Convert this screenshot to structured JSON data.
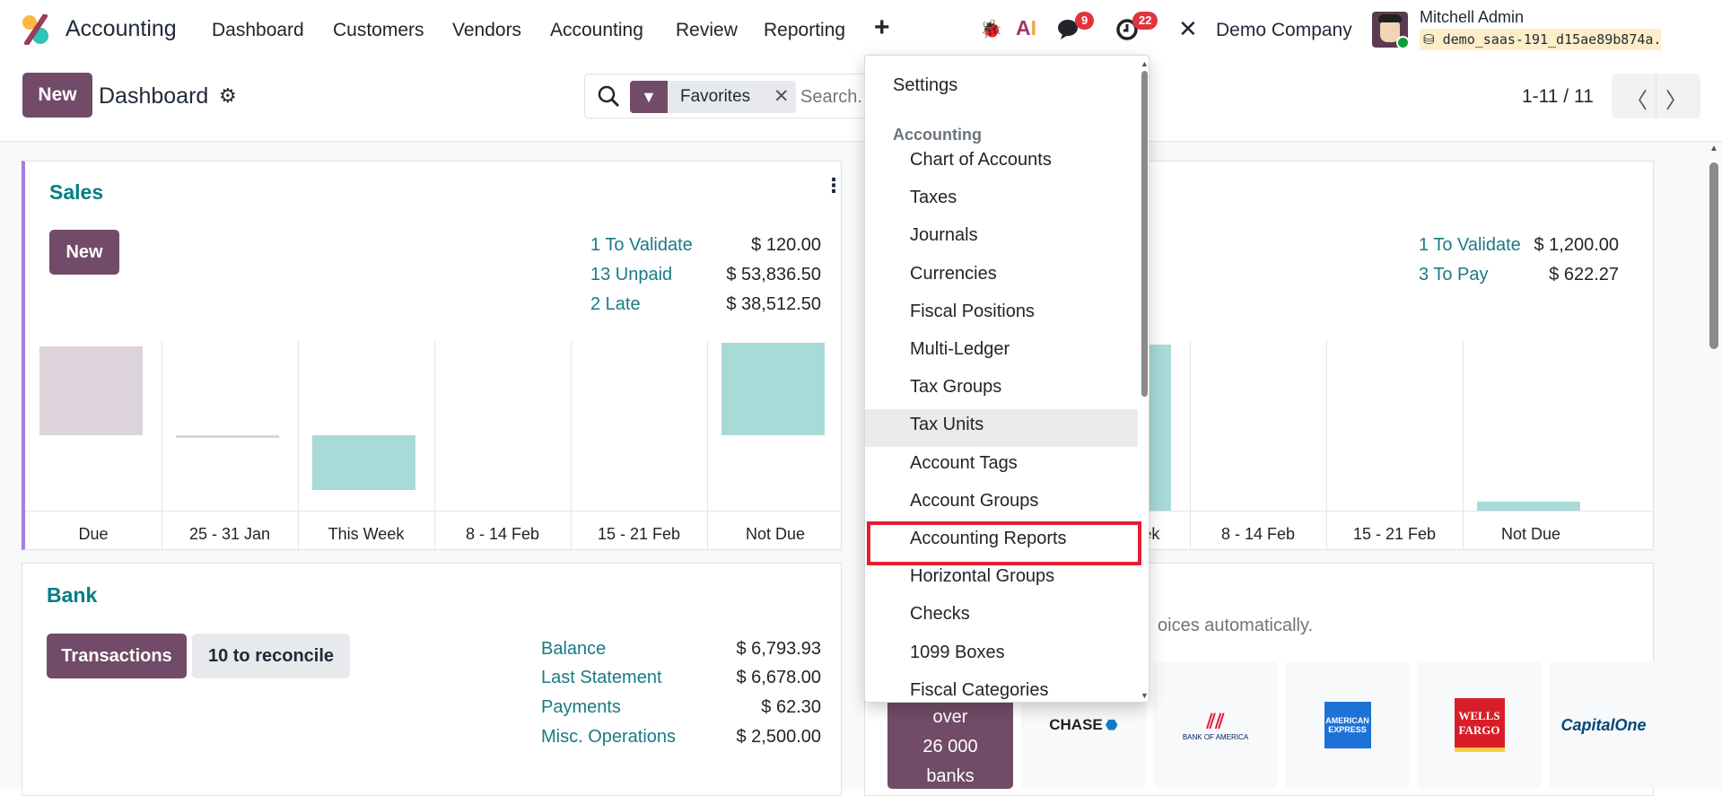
{
  "navbar": {
    "app_name": "Accounting",
    "menu": [
      "Dashboard",
      "Customers",
      "Vendors",
      "Accounting",
      "Review",
      "Reporting"
    ],
    "add_icon": "plus-icon",
    "messages_badge": "9",
    "activities_badge": "22",
    "company": "Demo Company",
    "user_name": "Mitchell Admin",
    "database": "demo_saas-191_d15ae89b874a..."
  },
  "control_panel": {
    "new_label": "New",
    "breadcrumb": "Dashboard",
    "facet_label": "Favorites",
    "search_placeholder": "Search...",
    "pager": "1-11 / 11"
  },
  "sales": {
    "title": "Sales",
    "new_label": "New",
    "stats": [
      {
        "label": "1 To Validate",
        "value": "$ 120.00"
      },
      {
        "label": "13 Unpaid",
        "value": "$ 53,836.50"
      },
      {
        "label": "2 Late",
        "value": "$ 38,512.50"
      }
    ]
  },
  "purchases": {
    "stats": [
      {
        "label": "1 To Validate",
        "value": "$ 1,200.00"
      },
      {
        "label": "3 To Pay",
        "value": "$ 622.27"
      }
    ]
  },
  "bank": {
    "title": "Bank",
    "transactions_label": "Transactions",
    "reconcile_label": "10 to reconcile",
    "stats": [
      {
        "label": "Balance",
        "value": "$ 6,793.93"
      },
      {
        "label": "Last Statement",
        "value": "$ 6,678.00"
      },
      {
        "label": "Payments",
        "value": "$ 62.30"
      },
      {
        "label": "Misc. Operations",
        "value": "$ 2,500.00"
      }
    ]
  },
  "bank_sync": {
    "text": "oices automatically.",
    "banks_line1": "over",
    "banks_line2": "26 000",
    "banks_line3": "banks",
    "logos": [
      "CHASE",
      "BANK OF AMERICA",
      "AMERICAN EXPRESS",
      "WELLS FARGO",
      "CapitalOne"
    ]
  },
  "dropdown": {
    "settings": "Settings",
    "section": "Accounting",
    "items": [
      "Chart of Accounts",
      "Taxes",
      "Journals",
      "Currencies",
      "Fiscal Positions",
      "Multi-Ledger",
      "Tax Groups",
      "Tax Units",
      "Account Tags",
      "Account Groups",
      "Accounting Reports",
      "Horizontal Groups",
      "Checks",
      "1099 Boxes",
      "Fiscal Categories"
    ],
    "hovered": "Tax Units",
    "highlighted": "Accounting Reports"
  },
  "colors": {
    "brand": "#714b67",
    "link": "#017e84",
    "highlight_border": "#e0202f",
    "past_bar": "#ddd3da",
    "future_bar": "#a8dad7"
  },
  "chart_data": [
    {
      "type": "bar",
      "categories": [
        "Due",
        "25 - 31 Jan",
        "This Week",
        "8 - 14 Feb",
        "15 - 21 Feb",
        "Not Due"
      ],
      "values": [
        47,
        -1.5,
        -29,
        0,
        0,
        49
      ],
      "ylim": [
        -40,
        50
      ]
    },
    {
      "type": "bar",
      "categories": [
        "Due",
        "25 - 31 Jan",
        "This Week",
        "8 - 14 Feb",
        "15 - 21 Feb",
        "Not Due"
      ],
      "values": [
        null,
        null,
        88,
        0,
        0,
        5
      ],
      "ylim": [
        0,
        90
      ]
    }
  ]
}
